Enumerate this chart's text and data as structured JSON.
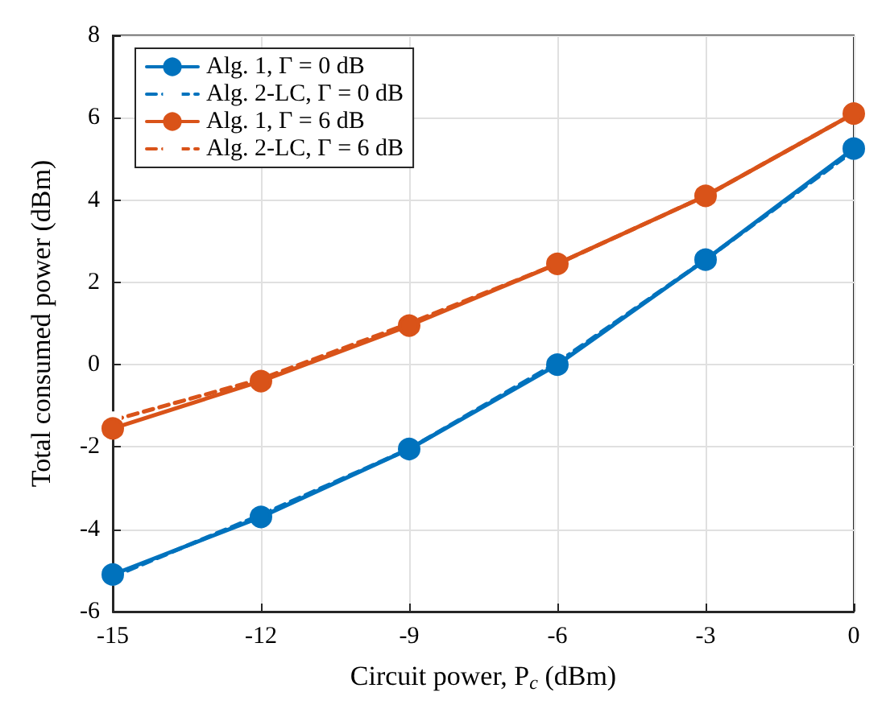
{
  "chart_data": {
    "type": "line",
    "xlabel": "Circuit power, P$_{c}$ (dBm)",
    "ylabel": "Total consumed power (dBm)",
    "x": [
      -15,
      -12,
      -9,
      -6,
      -3,
      0
    ],
    "xlim": [
      -15,
      0
    ],
    "xticks": [
      -15,
      -12,
      -9,
      -6,
      -3,
      0
    ],
    "ylim": [
      -6,
      8
    ],
    "yticks": [
      -6,
      -4,
      -2,
      0,
      2,
      4,
      6,
      8
    ],
    "grid": true,
    "legend": "top left",
    "series": [
      {
        "name": "Alg. 1, Γ = 0 dB",
        "color": "#0072bd",
        "marker": "circle",
        "line_style": "solid",
        "values": [
          -5.1,
          -3.7,
          -2.05,
          0.0,
          2.55,
          5.25
        ]
      },
      {
        "name": "Alg. 2-LC, Γ = 0 dB",
        "color": "#0072bd",
        "marker": "square",
        "line_style": "dashed",
        "values": [
          -5.15,
          -3.65,
          -2.05,
          0.05,
          2.55,
          5.2
        ]
      },
      {
        "name": "Alg. 1, Γ = 6 dB",
        "color": "#d95319",
        "marker": "circle",
        "line_style": "solid",
        "values": [
          -1.55,
          -0.4,
          0.95,
          2.45,
          4.1,
          6.1
        ]
      },
      {
        "name": "Alg. 2-LC, Γ = 6 dB",
        "color": "#d95319",
        "marker": "square",
        "line_style": "dashed",
        "values": [
          -1.35,
          -0.35,
          1.0,
          2.45,
          4.1,
          6.1
        ]
      }
    ]
  }
}
